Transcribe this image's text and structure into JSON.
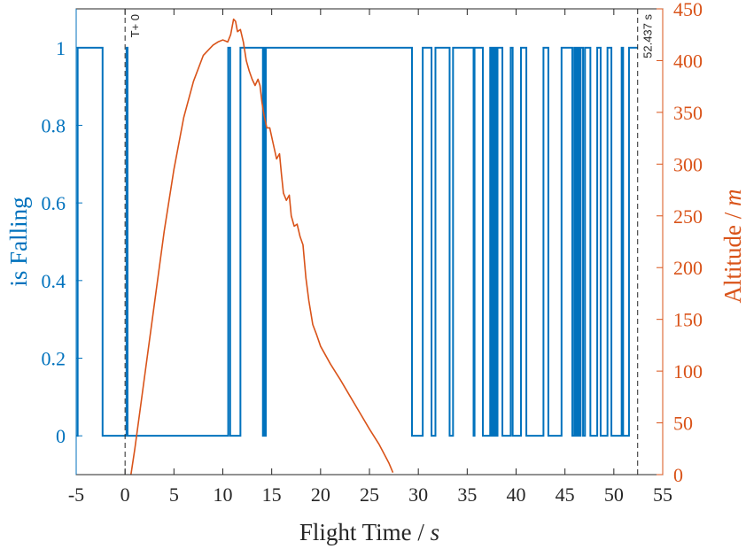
{
  "chart_data": {
    "type": "line",
    "xlabel": {
      "text": "Flight Time / ",
      "unit": "s"
    },
    "ylabel_left": "is Falling",
    "ylabel_right": {
      "text": "Altitude / ",
      "unit": "m"
    },
    "xlim": [
      -5,
      55
    ],
    "ylim_left": [
      -0.1,
      1.1
    ],
    "ylim_right": [
      0,
      450
    ],
    "x_ticks": [
      -5,
      0,
      5,
      10,
      15,
      20,
      25,
      30,
      35,
      40,
      45,
      50,
      55
    ],
    "x_tick_labels": [
      "-5",
      "0",
      "5",
      "10",
      "15",
      "20",
      "25",
      "30",
      "35",
      "40",
      "45",
      "50",
      "55"
    ],
    "y_left_ticks": [
      0,
      0.2,
      0.4,
      0.6,
      0.8,
      1
    ],
    "y_left_tick_labels": [
      "0",
      "0.2",
      "0.4",
      "0.6",
      "0.8",
      "1"
    ],
    "y_right_ticks": [
      0,
      50,
      100,
      150,
      200,
      250,
      300,
      350,
      400,
      450
    ],
    "y_right_tick_labels": [
      "0",
      "50",
      "100",
      "150",
      "200",
      "250",
      "300",
      "350",
      "400",
      "450"
    ],
    "grid": false,
    "markers": [
      {
        "x": 0,
        "label": "T+ 0"
      },
      {
        "x": 52.437,
        "label": "52.437 s"
      }
    ],
    "colors": {
      "left_axis": "#0072BD",
      "right_axis": "#D95319",
      "axis": "#262626"
    },
    "series": [
      {
        "axis": "left",
        "step": true,
        "x": [
          -5,
          -4.85,
          -2.3,
          0.15,
          0.25,
          10.55,
          10.75,
          11.8,
          14.1,
          14.2,
          14.3,
          14.4,
          29.35,
          30.45,
          31.35,
          31.75,
          33.2,
          33.55,
          35.65,
          35.75,
          36.6,
          37.35,
          37.5,
          37.55,
          37.7,
          37.8,
          37.95,
          38.1,
          38.6,
          39.45,
          39.65,
          40.5,
          41.05,
          42.8,
          43.3,
          44.65,
          45.75,
          45.95,
          46.05,
          46.15,
          46.25,
          46.35,
          46.5,
          46.6,
          46.85,
          47.05,
          47.6,
          48.3,
          48.65,
          49.35,
          49.75,
          50.8,
          50.95,
          51.55
        ],
        "y": [
          0,
          1,
          0,
          1,
          0,
          1,
          0,
          1,
          0,
          1,
          0,
          1,
          0,
          1,
          0,
          1,
          0,
          1,
          0,
          1,
          0,
          1,
          0,
          1,
          0,
          1,
          0,
          1,
          0,
          1,
          0,
          1,
          0,
          1,
          0,
          1,
          0,
          1,
          0,
          1,
          0,
          1,
          0,
          1,
          0,
          1,
          0,
          1,
          0,
          1,
          0,
          1,
          0,
          1
        ],
        "x_end": 52.437
      },
      {
        "axis": "right",
        "x": [
          0.6,
          1.0,
          2.0,
          3.0,
          4.0,
          5.0,
          6.0,
          7.0,
          8.0,
          9.0,
          9.5,
          10.0,
          10.5,
          10.8,
          11.1,
          11.3,
          11.5,
          11.8,
          12.1,
          12.4,
          12.7,
          13.0,
          13.3,
          13.6,
          13.8,
          14.0,
          14.2,
          14.5,
          14.8,
          15.1,
          15.5,
          15.8,
          16.0,
          16.2,
          16.5,
          16.8,
          17.0,
          17.3,
          17.6,
          17.9,
          18.2,
          18.5,
          18.8,
          19.2,
          19.6,
          20.0,
          21.0,
          22.0,
          23.0,
          24.0,
          25.0,
          26.0,
          27.0,
          27.4
        ],
        "y": [
          0,
          25,
          95,
          165,
          235,
          295,
          345,
          380,
          405,
          415,
          418,
          420,
          418,
          425,
          440,
          438,
          428,
          430,
          418,
          400,
          390,
          382,
          376,
          382,
          376,
          360,
          348,
          335,
          335,
          322,
          305,
          310,
          290,
          272,
          265,
          270,
          250,
          240,
          242,
          230,
          222,
          190,
          168,
          145,
          135,
          124,
          107,
          92,
          76,
          60,
          44,
          29,
          11,
          2
        ]
      }
    ]
  }
}
